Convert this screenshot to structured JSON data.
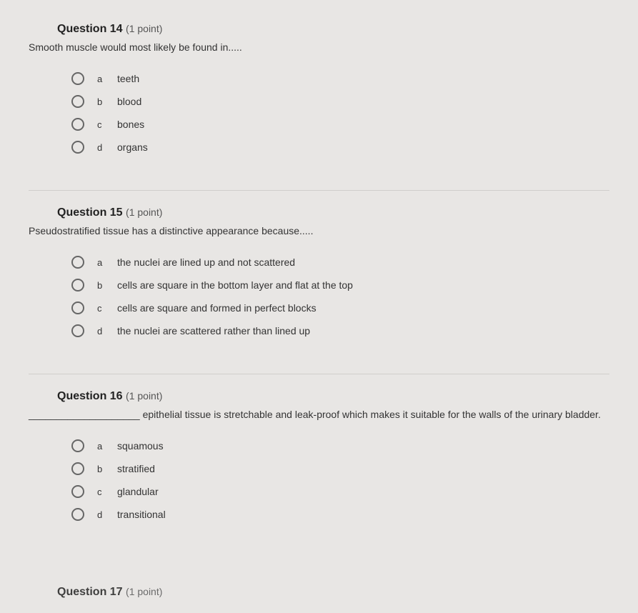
{
  "questions": [
    {
      "number": "Question 14",
      "points": "(1 point)",
      "text": "Smooth muscle would most likely be found in.....",
      "options": [
        {
          "letter": "a",
          "text": "teeth"
        },
        {
          "letter": "b",
          "text": "blood"
        },
        {
          "letter": "c",
          "text": "bones"
        },
        {
          "letter": "d",
          "text": "organs"
        }
      ]
    },
    {
      "number": "Question 15",
      "points": "(1 point)",
      "text": "Pseudostratified tissue has a distinctive appearance because.....",
      "options": [
        {
          "letter": "a",
          "text": "the nuclei are lined up and not scattered"
        },
        {
          "letter": "b",
          "text": "cells are square in the bottom layer and flat at the top"
        },
        {
          "letter": "c",
          "text": "cells are square and formed in perfect blocks"
        },
        {
          "letter": "d",
          "text": "the nuclei are scattered rather than lined up"
        }
      ]
    },
    {
      "number": "Question 16",
      "points": "(1 point)",
      "text": "____________________ epithelial tissue is stretchable and leak-proof which makes it suitable for the walls of the urinary bladder.",
      "options": [
        {
          "letter": "a",
          "text": "squamous"
        },
        {
          "letter": "b",
          "text": "stratified"
        },
        {
          "letter": "c",
          "text": "glandular"
        },
        {
          "letter": "d",
          "text": "transitional"
        }
      ]
    }
  ],
  "nextQuestion": {
    "number": "Question 17",
    "points": "(1 point)"
  }
}
